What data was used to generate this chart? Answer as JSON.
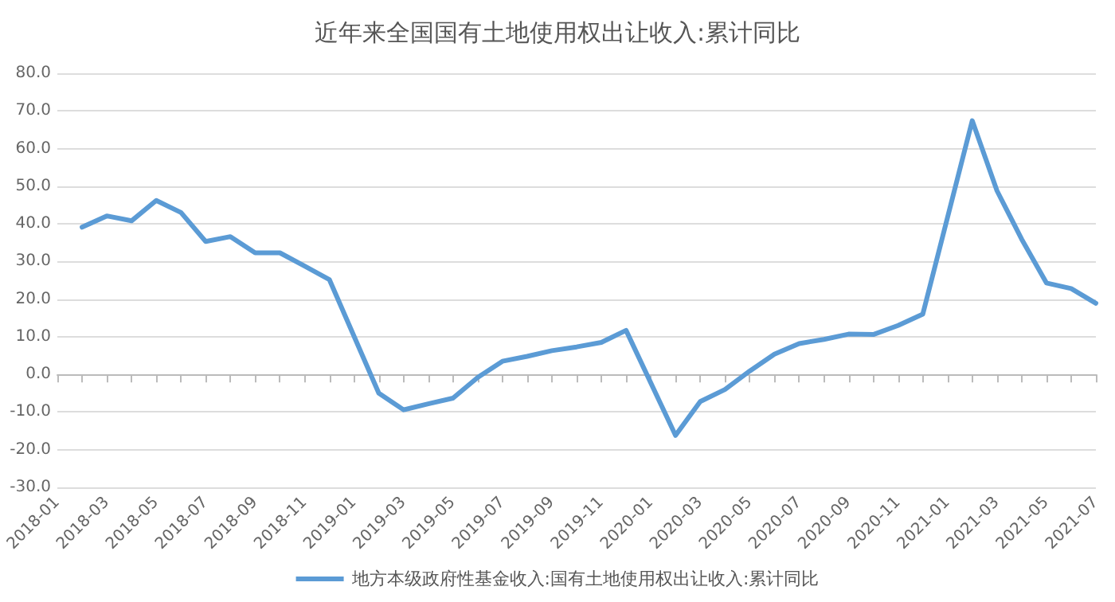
{
  "chart_data": {
    "type": "line",
    "title": "近年来全国国有土地使用权出让收入:累计同比",
    "categories": [
      "2018-01",
      null,
      "2018-03",
      null,
      "2018-05",
      null,
      "2018-07",
      null,
      "2018-09",
      null,
      "2018-11",
      null,
      "2019-01",
      null,
      "2019-03",
      null,
      "2019-05",
      null,
      "2019-07",
      null,
      "2019-09",
      null,
      "2019-11",
      null,
      "2020-01",
      null,
      "2020-03",
      null,
      "2020-05",
      null,
      "2020-07",
      null,
      "2020-09",
      null,
      "2020-11",
      null,
      "2021-01",
      null,
      "2021-03",
      null,
      "2021-05",
      null,
      "2021-07"
    ],
    "series": [
      {
        "name": "地方本级政府性基金收入:国有土地使用权出让收入:累计同比",
        "color": "#5b9bd5",
        "values": [
          null,
          39.1,
          42.1,
          40.8,
          46.2,
          43.0,
          35.3,
          36.6,
          32.3,
          32.3,
          28.8,
          25.2,
          null,
          -5.0,
          -9.4,
          -7.8,
          -6.3,
          -0.8,
          3.5,
          4.8,
          6.3,
          7.3,
          8.5,
          11.7,
          null,
          -16.2,
          -7.2,
          -4.0,
          0.9,
          5.4,
          8.2,
          9.3,
          10.7,
          10.6,
          13.0,
          16.0,
          null,
          67.4,
          48.8,
          35.9,
          24.3,
          22.8,
          18.9
        ]
      }
    ],
    "ylim": [
      -30,
      80
    ],
    "yticks": [
      {
        "value": -30,
        "label": "-30.0"
      },
      {
        "value": -20,
        "label": "-20.0"
      },
      {
        "value": -10,
        "label": "-10.0"
      },
      {
        "value": 0,
        "label": "0.0"
      },
      {
        "value": 10,
        "label": "10.0"
      },
      {
        "value": 20,
        "label": "20.0"
      },
      {
        "value": 30,
        "label": "30.0"
      },
      {
        "value": 40,
        "label": "40.0"
      },
      {
        "value": 50,
        "label": "50.0"
      },
      {
        "value": 60,
        "label": "60.0"
      },
      {
        "value": 70,
        "label": "70.0"
      },
      {
        "value": 80,
        "label": "80.0"
      }
    ],
    "grid": "y",
    "legend": "bottom",
    "marker": "none",
    "line_style": "solid"
  }
}
